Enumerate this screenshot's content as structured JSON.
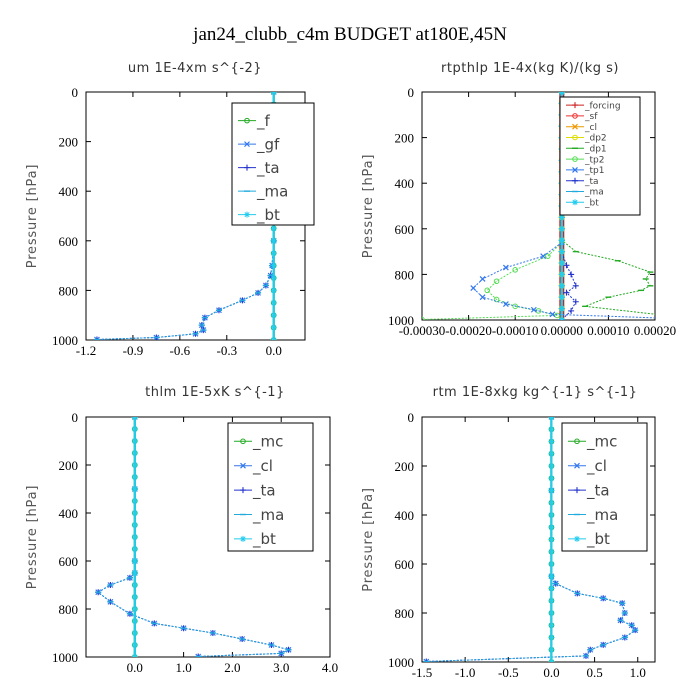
{
  "suptitle": "jan24_clubb_c4m  BUDGET at180E,45N",
  "chart_data": [
    {
      "type": "line",
      "title": "um   1E-4xm  s^{-2}",
      "ylabel": "Pressure [hPa]",
      "xlim": [
        -1.2,
        0.2
      ],
      "ylim": [
        1000,
        0
      ],
      "xticks": [
        "-1.2",
        "-0.9",
        "-0.6",
        "-0.3",
        "0.0"
      ],
      "yticks": [
        "0",
        "200",
        "400",
        "600",
        "800",
        "1000"
      ],
      "legend_position": "top-right",
      "series": [
        {
          "name": "_f",
          "color": "#22aa22",
          "marker": "o",
          "x": [
            0,
            0,
            0,
            0,
            0,
            0,
            0,
            0,
            0,
            0,
            0,
            0
          ],
          "y": [
            0,
            100,
            200,
            300,
            400,
            500,
            600,
            700,
            800,
            900,
            950,
            1000
          ]
        },
        {
          "name": "_gf",
          "color": "#3377ee",
          "marker": "x",
          "x": [
            0,
            0,
            0,
            -0.01,
            -0.02,
            -0.05,
            -0.1,
            -0.2,
            -0.35,
            -0.44,
            -0.46,
            -0.45,
            -0.5,
            -0.75,
            -1.13
          ],
          "y": [
            0,
            300,
            600,
            700,
            740,
            780,
            810,
            840,
            880,
            910,
            940,
            960,
            975,
            990,
            998
          ]
        },
        {
          "name": "_ta",
          "color": "#2233cc",
          "marker": "+",
          "x": [
            0,
            0,
            0,
            -0.01,
            -0.02,
            -0.05,
            -0.1,
            -0.2,
            -0.35,
            -0.44,
            -0.46,
            -0.45,
            -0.5,
            -0.75,
            -1.13
          ],
          "y": [
            0,
            300,
            600,
            700,
            740,
            780,
            810,
            840,
            880,
            910,
            940,
            960,
            975,
            990,
            998
          ]
        },
        {
          "name": "_ma",
          "color": "#22aadd",
          "marker": "-",
          "x": [
            0,
            0,
            0,
            -0.01,
            -0.02,
            -0.05,
            -0.1,
            -0.2,
            -0.35,
            -0.44,
            -0.46,
            -0.45,
            -0.5,
            -0.75,
            -1.13
          ],
          "y": [
            0,
            300,
            600,
            700,
            740,
            780,
            810,
            840,
            880,
            910,
            940,
            960,
            975,
            990,
            998
          ]
        },
        {
          "name": "_bt",
          "color": "#22ccee",
          "marker": "*",
          "x": [
            0,
            0,
            0,
            0,
            0,
            0
          ],
          "y": [
            0,
            200,
            400,
            600,
            800,
            1000
          ]
        }
      ]
    },
    {
      "type": "line",
      "title": "rtpthlp   1E-4x(kg K)/(kg s)",
      "ylabel": "Pressure [hPa]",
      "xlim": [
        -0.0003,
        0.0002
      ],
      "ylim": [
        1000,
        0
      ],
      "xticks": [
        "-0.00030",
        "-0.00020",
        "-0.00010",
        "0.00000",
        "0.00010",
        "0.00020"
      ],
      "yticks": [
        "0",
        "200",
        "400",
        "600",
        "800",
        "1000"
      ],
      "legend_position": "top-right",
      "series": [
        {
          "name": "_forcing",
          "color": "#cc2222",
          "marker": "+",
          "x": [
            0,
            0,
            0,
            0,
            0,
            0,
            0,
            0,
            0,
            0,
            0
          ],
          "y": [
            0,
            100,
            200,
            300,
            400,
            500,
            600,
            700,
            800,
            900,
            1000
          ]
        },
        {
          "name": "_sf",
          "color": "#ee3333",
          "marker": "o",
          "x": [
            0,
            0,
            0,
            0,
            0
          ],
          "y": [
            0,
            250,
            500,
            750,
            1000
          ]
        },
        {
          "name": "_cl",
          "color": "#ee9900",
          "marker": "x",
          "x": [
            0,
            0,
            0
          ],
          "y": [
            0,
            500,
            1000
          ]
        },
        {
          "name": "_dp2",
          "color": "#dddd00",
          "marker": "o",
          "x": [
            0,
            0,
            0
          ],
          "y": [
            0,
            500,
            1000
          ]
        },
        {
          "name": "_dp1",
          "color": "#22aa22",
          "marker": "-",
          "x": [
            0,
            0,
            3e-05,
            0.00012,
            0.00019,
            0.00018,
            0.00019,
            0.00017,
            0.0001,
            5e-05,
            0.0003
          ],
          "y": [
            0,
            650,
            700,
            740,
            790,
            820,
            850,
            870,
            900,
            940,
            998
          ]
        },
        {
          "name": "_tp2",
          "color": "#55dd55",
          "marker": "o",
          "x": [
            0,
            0,
            -3e-05,
            -0.0001,
            -0.00014,
            -0.00016,
            -0.00014,
            -0.0001,
            -5e-05,
            -1e-05,
            -0.0003
          ],
          "y": [
            0,
            660,
            720,
            780,
            830,
            870,
            910,
            940,
            960,
            980,
            998
          ]
        },
        {
          "name": "_tp1",
          "color": "#3377ee",
          "marker": "x",
          "x": [
            0,
            0,
            -4e-05,
            -0.00012,
            -0.00017,
            -0.00019,
            -0.00017,
            -0.00012,
            -6e-05,
            -2e-05,
            0.0003
          ],
          "y": [
            0,
            660,
            720,
            770,
            820,
            860,
            900,
            930,
            955,
            975,
            998
          ]
        },
        {
          "name": "_ta",
          "color": "#2233cc",
          "marker": "+",
          "x": [
            0,
            0,
            1e-05,
            2e-05,
            3e-05,
            1e-05,
            3e-05,
            2e-05,
            0
          ],
          "y": [
            0,
            700,
            760,
            800,
            850,
            880,
            920,
            960,
            998
          ]
        },
        {
          "name": "_ma",
          "color": "#22aadd",
          "marker": "-",
          "x": [
            0,
            0,
            0,
            0
          ],
          "y": [
            0,
            400,
            800,
            1000
          ]
        },
        {
          "name": "_bt",
          "color": "#22ccee",
          "marker": "*",
          "x": [
            0,
            0,
            0,
            0
          ],
          "y": [
            0,
            400,
            800,
            1000
          ]
        }
      ]
    },
    {
      "type": "line",
      "title": "thlm   1E-5xK  s^{-1}",
      "ylabel": "Pressure [hPa]",
      "xlim": [
        -1.0,
        4.0
      ],
      "ylim": [
        1000,
        0
      ],
      "xticks": [
        "0.0",
        "1.0",
        "2.0",
        "3.0",
        "4.0"
      ],
      "yticks": [
        "0",
        "200",
        "400",
        "600",
        "800",
        "1000"
      ],
      "legend_position": "top-right",
      "series": [
        {
          "name": "_mc",
          "color": "#22aa22",
          "marker": "o",
          "x": [
            0,
            0,
            0,
            0,
            0,
            0,
            0,
            0,
            0,
            0,
            0
          ],
          "y": [
            0,
            100,
            200,
            300,
            400,
            500,
            600,
            700,
            800,
            900,
            1000
          ]
        },
        {
          "name": "_cl",
          "color": "#3377ee",
          "marker": "x",
          "x": [
            0,
            0,
            0,
            0,
            -0.1,
            -0.5,
            -0.75,
            -0.5,
            -0.1,
            0.4,
            1.0,
            1.6,
            2.2,
            2.8,
            3.15,
            3.0,
            1.3
          ],
          "y": [
            0,
            300,
            600,
            650,
            670,
            700,
            730,
            770,
            820,
            860,
            880,
            900,
            925,
            950,
            970,
            985,
            998
          ]
        },
        {
          "name": "_ta",
          "color": "#2233cc",
          "marker": "+",
          "x": [
            0,
            0,
            0,
            0,
            -0.1,
            -0.5,
            -0.75,
            -0.5,
            -0.1,
            0.4,
            1.0,
            1.6,
            2.2,
            2.8,
            3.15,
            3.0,
            1.3
          ],
          "y": [
            0,
            300,
            600,
            650,
            670,
            700,
            730,
            770,
            820,
            860,
            880,
            900,
            925,
            950,
            970,
            985,
            998
          ]
        },
        {
          "name": "_ma",
          "color": "#22aadd",
          "marker": "-",
          "x": [
            0,
            0,
            0,
            0,
            -0.1,
            -0.5,
            -0.75,
            -0.5,
            -0.1,
            0.4,
            1.0,
            1.6,
            2.2,
            2.8,
            3.15,
            3.0,
            1.3
          ],
          "y": [
            0,
            300,
            600,
            650,
            670,
            700,
            730,
            770,
            820,
            860,
            880,
            900,
            925,
            950,
            970,
            985,
            998
          ]
        },
        {
          "name": "_bt",
          "color": "#22ccee",
          "marker": "*",
          "x": [
            0,
            0,
            0,
            0,
            0,
            0
          ],
          "y": [
            0,
            200,
            400,
            600,
            800,
            1000
          ]
        }
      ]
    },
    {
      "type": "line",
      "title": "rtm   1E-8xkg  kg^{-1}  s^{-1}",
      "ylabel": "Pressure [hPa]",
      "xlim": [
        -1.5,
        1.2
      ],
      "ylim": [
        1000,
        0
      ],
      "xticks": [
        "-1.5",
        "-1.0",
        "-0.5",
        "0.0",
        "0.5",
        "1.0"
      ],
      "yticks": [
        "0",
        "200",
        "400",
        "600",
        "800",
        "1000"
      ],
      "legend_position": "top-right",
      "series": [
        {
          "name": "_mc",
          "color": "#22aa22",
          "marker": "o",
          "x": [
            0,
            0,
            0,
            0,
            0,
            0,
            0,
            0,
            0,
            0,
            0
          ],
          "y": [
            0,
            100,
            200,
            300,
            400,
            500,
            600,
            700,
            800,
            900,
            1000
          ]
        },
        {
          "name": "_cl",
          "color": "#3377ee",
          "marker": "x",
          "x": [
            0,
            0,
            0,
            0.05,
            0.3,
            0.6,
            0.82,
            0.85,
            0.8,
            0.93,
            0.97,
            0.85,
            0.6,
            0.45,
            0.4,
            -1.45
          ],
          "y": [
            0,
            300,
            650,
            680,
            720,
            740,
            760,
            800,
            830,
            850,
            870,
            900,
            930,
            950,
            975,
            998
          ]
        },
        {
          "name": "_ta",
          "color": "#2233cc",
          "marker": "+",
          "x": [
            0,
            0,
            0,
            0.05,
            0.3,
            0.6,
            0.82,
            0.85,
            0.8,
            0.93,
            0.97,
            0.85,
            0.6,
            0.45,
            0.4,
            -1.45
          ],
          "y": [
            0,
            300,
            650,
            680,
            720,
            740,
            760,
            800,
            830,
            850,
            870,
            900,
            930,
            950,
            975,
            998
          ]
        },
        {
          "name": "_ma",
          "color": "#22aadd",
          "marker": "-",
          "x": [
            0,
            0,
            0,
            0.05,
            0.3,
            0.6,
            0.82,
            0.85,
            0.8,
            0.93,
            0.97,
            0.85,
            0.6,
            0.45,
            0.4,
            -1.45
          ],
          "y": [
            0,
            300,
            650,
            680,
            720,
            740,
            760,
            800,
            830,
            850,
            870,
            900,
            930,
            950,
            975,
            998
          ]
        },
        {
          "name": "_bt",
          "color": "#22ccee",
          "marker": "*",
          "x": [
            0,
            0,
            0,
            0,
            0,
            0
          ],
          "y": [
            0,
            200,
            400,
            600,
            800,
            1000
          ]
        }
      ]
    }
  ]
}
